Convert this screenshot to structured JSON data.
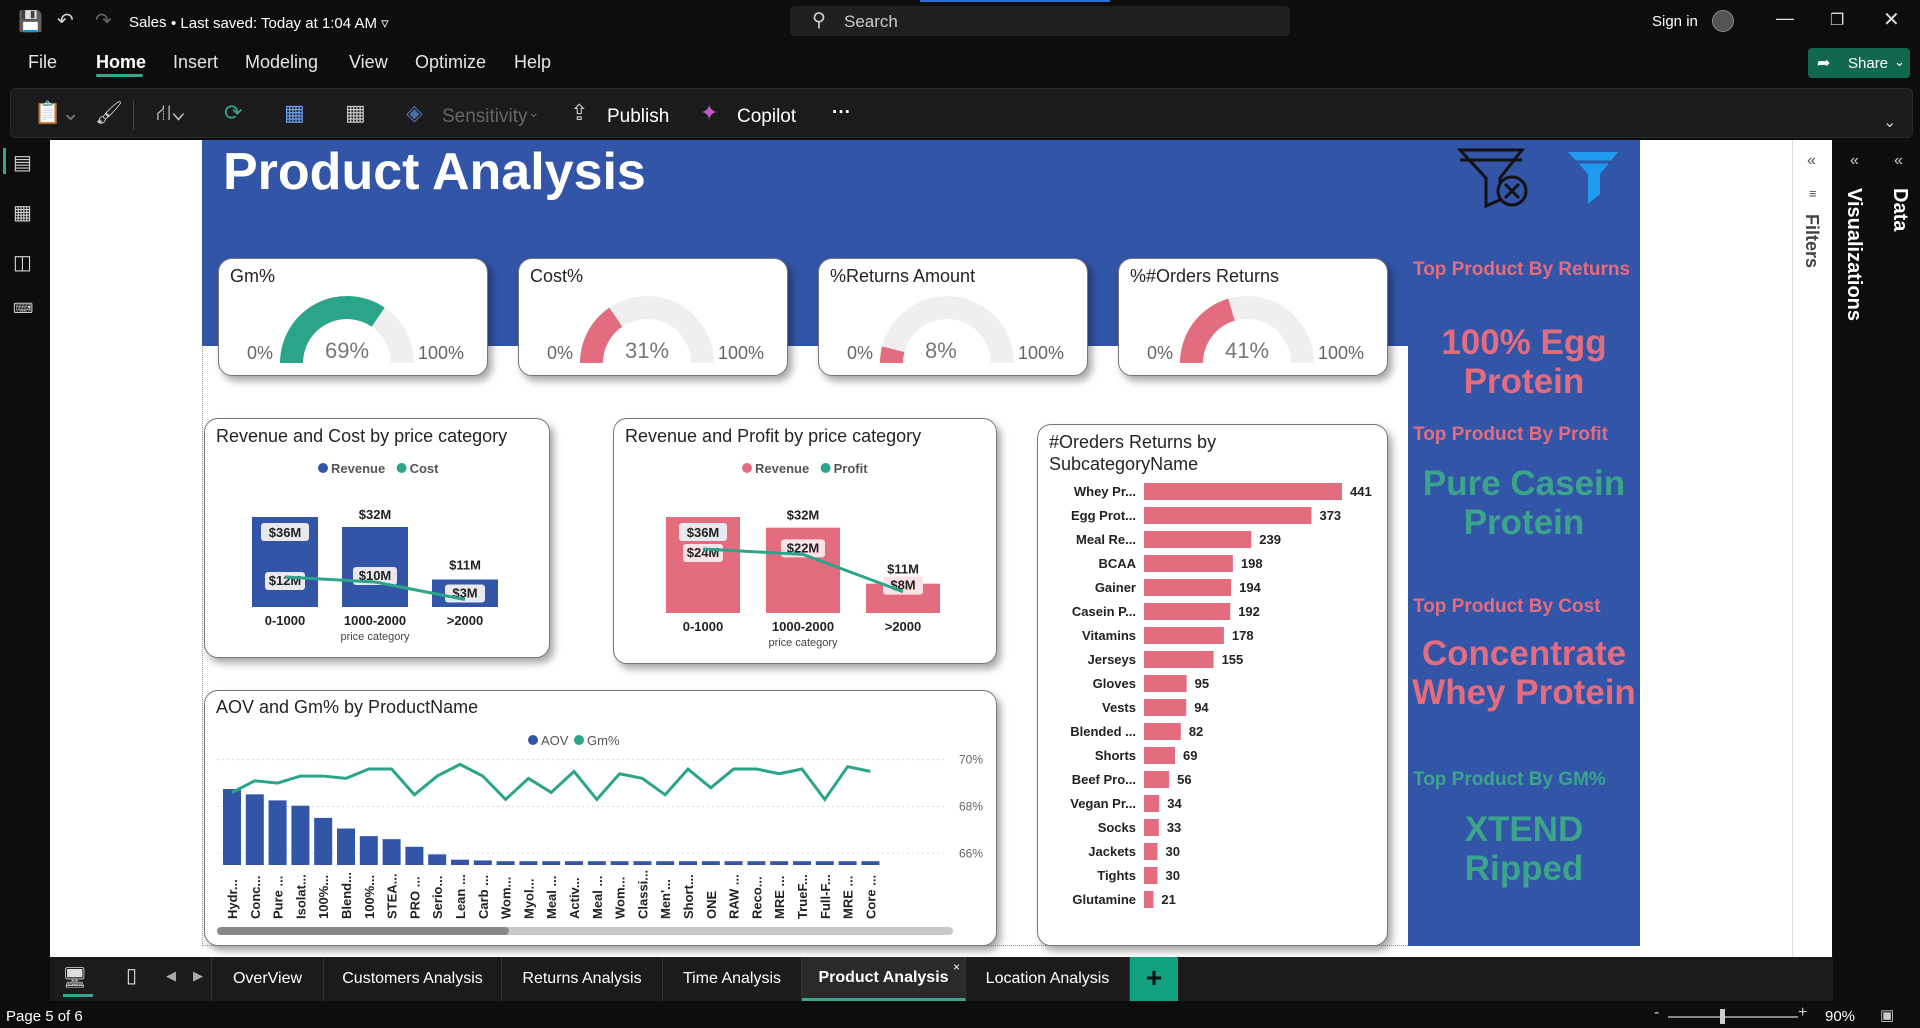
{
  "titlebar": {
    "doc_title": "Sales",
    "saved": "Last saved: Today at 1:04 AM",
    "search": "Search",
    "signin": "Sign in"
  },
  "menu": {
    "file": "File",
    "home": "Home",
    "insert": "Insert",
    "modeling": "Modeling",
    "view": "View",
    "optimize": "Optimize",
    "help": "Help",
    "share": "Share"
  },
  "ribbon": {
    "sensitivity": "Sensitivity",
    "publish": "Publish",
    "copilot": "Copilot",
    "more": "···"
  },
  "report": {
    "title": "Product Analysis"
  },
  "gauges": [
    {
      "title": "Gm%",
      "min": "0%",
      "max": "100%",
      "value_label": "69%",
      "value": 0.69,
      "color": "#2aa58a"
    },
    {
      "title": "Cost%",
      "min": "0%",
      "max": "100%",
      "value_label": "31%",
      "value": 0.31,
      "color": "#e36c7f"
    },
    {
      "title": "%Returns Amount",
      "min": "0%",
      "max": "100%",
      "value_label": "8%",
      "value": 0.08,
      "color": "#e36c7f"
    },
    {
      "title": "%#Orders Returns",
      "min": "0%",
      "max": "100%",
      "value_label": "41%",
      "value": 0.41,
      "color": "#e36c7f"
    }
  ],
  "side": {
    "h1": "Top Product By Returns",
    "v1": "100% Egg Protein",
    "h2": "Top Product By Profit",
    "v2": "Pure Casein Protein",
    "h3": "Top Product By Cost",
    "v3": "Concentrate Whey Protein",
    "h4": "Top Product By GM%",
    "v4": "XTEND Ripped",
    "c_pink": "#e36c7f",
    "c_green": "#3aa58a"
  },
  "panels": {
    "filters": "Filters",
    "visualizations": "Visualizations",
    "data": "Data"
  },
  "tabs": [
    "OverView",
    "Customers Analysis",
    "Returns Analysis",
    "Time Analysis",
    "Product Analysis",
    "Location Analysis"
  ],
  "status": {
    "page": "Page 5 of 6",
    "zoom": "90%"
  },
  "chart_data": [
    {
      "type": "bar",
      "title": "Revenue and Cost by price category",
      "xlabel": "price category",
      "categories": [
        "0-1000",
        "1000-2000",
        ">2000"
      ],
      "series": [
        {
          "name": "Revenue",
          "values": [
            36,
            32,
            11
          ],
          "labels": [
            "$36M",
            "$32M",
            "$11M"
          ],
          "color": "#3355a8"
        },
        {
          "name": "Cost",
          "values": [
            12,
            10,
            3
          ],
          "labels": [
            "$12M",
            "$10M",
            "$3M"
          ],
          "color": "#2aa58a",
          "style": "line"
        }
      ]
    },
    {
      "type": "bar",
      "title": "Revenue and Profit by price category",
      "xlabel": "price category",
      "categories": [
        "0-1000",
        "1000-2000",
        ">2000"
      ],
      "series": [
        {
          "name": "Revenue",
          "values": [
            36,
            32,
            11
          ],
          "labels": [
            "$36M",
            "$32M",
            "$11M"
          ],
          "color": "#e36c7f"
        },
        {
          "name": "Profit",
          "values": [
            24,
            22,
            8
          ],
          "labels": [
            "$24M",
            "$22M",
            "$8M"
          ],
          "color": "#2aa58a",
          "style": "line"
        }
      ]
    },
    {
      "type": "bar",
      "title": "#Oreders Returns by SubcategoryName",
      "orientation": "horizontal",
      "categories": [
        "Whey Pr...",
        "Egg Prot...",
        "Meal Re...",
        "BCAA",
        "Gainer",
        "Casein P...",
        "Vitamins",
        "Jerseys",
        "Gloves",
        "Vests",
        "Blended ...",
        "Shorts",
        "Beef Pro...",
        "Vegan Pr...",
        "Socks",
        "Jackets",
        "Tights",
        "Glutamine"
      ],
      "values": [
        441,
        373,
        239,
        198,
        194,
        192,
        178,
        155,
        95,
        94,
        82,
        69,
        56,
        34,
        33,
        30,
        30,
        21
      ],
      "color": "#e36c7f"
    },
    {
      "type": "bar",
      "title": "AOV and Gm% by ProductName",
      "y2_ticks": [
        "70%",
        "68%",
        "66%"
      ],
      "categories": [
        "Hydr...",
        "Conc...",
        "Pure ...",
        "Isolat...",
        "100%...",
        "Blend...",
        "100%...",
        "STEA...",
        "PRO ...",
        "Serio...",
        "Lean ...",
        "Carb ...",
        "Wom...",
        "Myol...",
        "Meal ...",
        "Activ...",
        "Meal ...",
        "Wom...",
        "Classi...",
        "Men'...",
        "Short...",
        "ONE",
        "RAW ...",
        "Reco...",
        "MRE ...",
        "TrueF...",
        "Full-F...",
        "MRE ...",
        "Core ..."
      ],
      "series": [
        {
          "name": "AOV",
          "values": [
            100,
            93,
            85,
            78,
            62,
            48,
            38,
            34,
            24,
            14,
            7,
            6,
            5,
            5,
            5,
            5,
            5,
            5,
            5,
            5,
            5,
            5,
            5,
            5,
            5,
            5,
            5,
            5,
            5
          ],
          "color": "#3355a8"
        },
        {
          "name": "Gm%",
          "values": [
            68.6,
            69.1,
            69.0,
            69.3,
            69.3,
            69.2,
            69.6,
            69.6,
            68.5,
            69.3,
            69.8,
            69.3,
            68.3,
            69.2,
            68.6,
            69.5,
            68.3,
            69.4,
            69.2,
            68.5,
            69.6,
            68.8,
            69.6,
            69.6,
            69.4,
            69.6,
            68.3,
            69.7,
            69.5
          ],
          "color": "#2aa58a",
          "style": "line"
        }
      ],
      "y2lim": [
        65.5,
        70.2
      ]
    }
  ]
}
